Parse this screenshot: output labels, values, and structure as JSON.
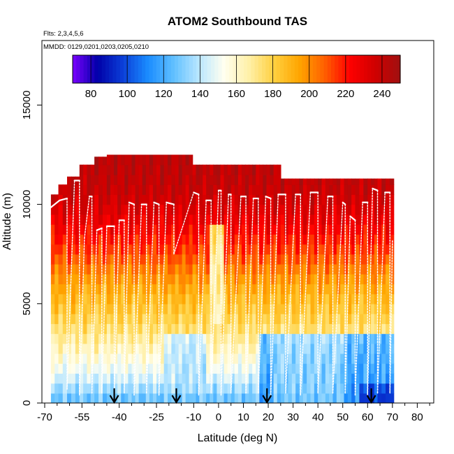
{
  "chart_data": {
    "type": "heatmap",
    "title": "ATOM2 Southbound TAS",
    "subtitle_flights": "Flts: 2,3,4,5,6",
    "subtitle_dates": "MMDD: 0129,0201,0203,0205,0210",
    "xlabel": "Latitude (deg N)",
    "ylabel": "Altitude (m)",
    "xlim": [
      -72,
      87
    ],
    "ylim": [
      0,
      17800
    ],
    "x_ticks": [
      -70,
      -55,
      -40,
      -25,
      -10,
      0,
      10,
      20,
      30,
      40,
      50,
      60,
      70,
      80
    ],
    "x_tick_labels": [
      "-70",
      "-55",
      "-40",
      "-25",
      "-10",
      "0",
      "10",
      "20",
      "30",
      "40",
      "50",
      "60",
      "70",
      "80"
    ],
    "y_ticks": [
      0,
      5000,
      10000,
      15000
    ],
    "y_tick_labels": [
      "0",
      "5000",
      "10000",
      "15000"
    ],
    "colorbar": {
      "vmin": 70,
      "vmax": 250,
      "ticks": [
        80,
        100,
        120,
        140,
        160,
        180,
        200,
        220,
        240
      ],
      "tick_labels": [
        "80",
        "100",
        "120",
        "140",
        "160",
        "180",
        "200",
        "220",
        "240"
      ],
      "colors": [
        "#7b00ff",
        "#0000a8",
        "#0b3fd8",
        "#1a8cff",
        "#5fbfff",
        "#b8e6ff",
        "#fffff0",
        "#fff0a8",
        "#ffd040",
        "#ffa500",
        "#ff6000",
        "#ff0000",
        "#d00000",
        "#a01010"
      ]
    },
    "tas_vs_altitude_m": [
      [
        0,
        125
      ],
      [
        500,
        132
      ],
      [
        1000,
        140
      ],
      [
        1500,
        148
      ],
      [
        2000,
        154
      ],
      [
        2500,
        160
      ],
      [
        3000,
        166
      ],
      [
        3500,
        172
      ],
      [
        4000,
        177
      ],
      [
        4500,
        182
      ],
      [
        5000,
        186
      ],
      [
        5500,
        190
      ],
      [
        6000,
        195
      ],
      [
        6500,
        200
      ],
      [
        7000,
        206
      ],
      [
        7500,
        212
      ],
      [
        8000,
        217
      ],
      [
        8500,
        222
      ],
      [
        9000,
        227
      ],
      [
        9500,
        231
      ],
      [
        10000,
        235
      ],
      [
        10500,
        238
      ],
      [
        11000,
        240
      ],
      [
        11500,
        241
      ],
      [
        12000,
        242
      ],
      [
        12500,
        243
      ]
    ],
    "column_tops_m": [
      {
        "lat": [
          -67.5,
          -64.5
        ],
        "top": 10500
      },
      {
        "lat": [
          -64.5,
          -61
        ],
        "top": 11000
      },
      {
        "lat": [
          -61,
          -56
        ],
        "top": 11400
      },
      {
        "lat": [
          -56,
          -50
        ],
        "top": 12000
      },
      {
        "lat": [
          -50,
          -45
        ],
        "top": 12400
      },
      {
        "lat": [
          -45,
          -35
        ],
        "top": 12500
      },
      {
        "lat": [
          -35,
          -25
        ],
        "top": 12500
      },
      {
        "lat": [
          -25,
          -17.5
        ],
        "top": 12500
      },
      {
        "lat": [
          -17.5,
          -10.5
        ],
        "top": 12500
      },
      {
        "lat": [
          -10.5,
          -5
        ],
        "top": 12000
      },
      {
        "lat": [
          -5,
          5
        ],
        "top": 12000
      },
      {
        "lat": [
          5,
          15
        ],
        "top": 12000
      },
      {
        "lat": [
          15,
          25
        ],
        "top": 12000
      },
      {
        "lat": [
          25,
          40
        ],
        "top": 11300
      },
      {
        "lat": [
          40,
          55
        ],
        "top": 11300
      },
      {
        "lat": [
          55,
          60
        ],
        "top": 11300
      },
      {
        "lat": [
          60,
          64
        ],
        "top": 11300
      },
      {
        "lat": [
          64,
          70.5
        ],
        "top": 11300
      }
    ],
    "low_tas_regions": [
      {
        "lat": [
          -22.5,
          -17
        ],
        "alt": [
          0,
          3300
        ],
        "tas": 142
      },
      {
        "lat": [
          -17,
          -5
        ],
        "alt": [
          0,
          3400
        ],
        "tas": 138
      },
      {
        "lat": [
          17,
          22
        ],
        "alt": [
          0,
          3600
        ],
        "tas": 118
      },
      {
        "lat": [
          22,
          50
        ],
        "alt": [
          0,
          3300
        ],
        "tas": 130
      },
      {
        "lat": [
          50,
          70
        ],
        "alt": [
          0,
          3400
        ],
        "tas": 115
      },
      {
        "lat": [
          56,
          70
        ],
        "alt": [
          0,
          1000
        ],
        "tas": 95
      },
      {
        "lat": [
          -3,
          2
        ],
        "alt": [
          4000,
          9000
        ],
        "tas": 165
      }
    ],
    "flight_track_white": [
      [
        -68,
        9300
      ],
      [
        -68,
        9800
      ],
      [
        -64,
        10200
      ],
      [
        -61,
        10300
      ],
      [
        -61,
        700
      ],
      [
        -58,
        11200
      ],
      [
        -56,
        11200
      ],
      [
        -56,
        400
      ],
      [
        -54,
        8300
      ],
      [
        -52,
        10400
      ],
      [
        -51,
        10400
      ],
      [
        -51,
        500
      ],
      [
        -49,
        8700
      ],
      [
        -47,
        8800
      ],
      [
        -47,
        500
      ],
      [
        -45,
        8900
      ],
      [
        -42,
        8900
      ],
      [
        -42,
        500
      ],
      [
        -40,
        9200
      ],
      [
        -38,
        9200
      ],
      [
        -38,
        500
      ],
      [
        -36,
        10100
      ],
      [
        -34,
        10000
      ],
      [
        -34,
        400
      ],
      [
        -31,
        10000
      ],
      [
        -29,
        10000
      ],
      [
        -29,
        500
      ],
      [
        -26,
        10100
      ],
      [
        -24,
        10000
      ],
      [
        -24,
        400
      ],
      [
        -21,
        10100
      ],
      [
        -18,
        10000
      ],
      [
        -18,
        7500
      ],
      [
        -10,
        10600
      ],
      [
        -8,
        10500
      ],
      [
        -8,
        400
      ],
      [
        -5,
        10200
      ],
      [
        -3,
        10200
      ],
      [
        -3,
        500
      ],
      [
        0,
        10700
      ],
      [
        1,
        10700
      ],
      [
        1,
        400
      ],
      [
        4,
        10500
      ],
      [
        5,
        10500
      ],
      [
        5,
        500
      ],
      [
        9,
        10400
      ],
      [
        11,
        10400
      ],
      [
        11,
        500
      ],
      [
        14,
        10300
      ],
      [
        16,
        10300
      ],
      [
        16,
        500
      ],
      [
        19,
        10400
      ],
      [
        21,
        10300
      ],
      [
        21,
        400
      ],
      [
        24,
        10500
      ],
      [
        27,
        10500
      ],
      [
        27,
        500
      ],
      [
        31,
        10500
      ],
      [
        33,
        10500
      ],
      [
        33,
        400
      ],
      [
        37,
        10600
      ],
      [
        40,
        10600
      ],
      [
        40,
        500
      ],
      [
        44,
        10400
      ],
      [
        46,
        10400
      ],
      [
        46,
        500
      ],
      [
        50,
        10100
      ],
      [
        51,
        10000
      ],
      [
        51,
        500
      ],
      [
        53,
        9400
      ],
      [
        55,
        9200
      ],
      [
        55,
        400
      ],
      [
        58,
        10100
      ],
      [
        60,
        10100
      ],
      [
        60,
        400
      ],
      [
        62,
        10800
      ],
      [
        64,
        10700
      ],
      [
        64,
        500
      ],
      [
        67,
        10600
      ],
      [
        69,
        10600
      ],
      [
        69,
        500
      ],
      [
        70,
        8200
      ]
    ],
    "markers_lat": [
      -42,
      -17,
      19.5,
      61.5
    ]
  }
}
